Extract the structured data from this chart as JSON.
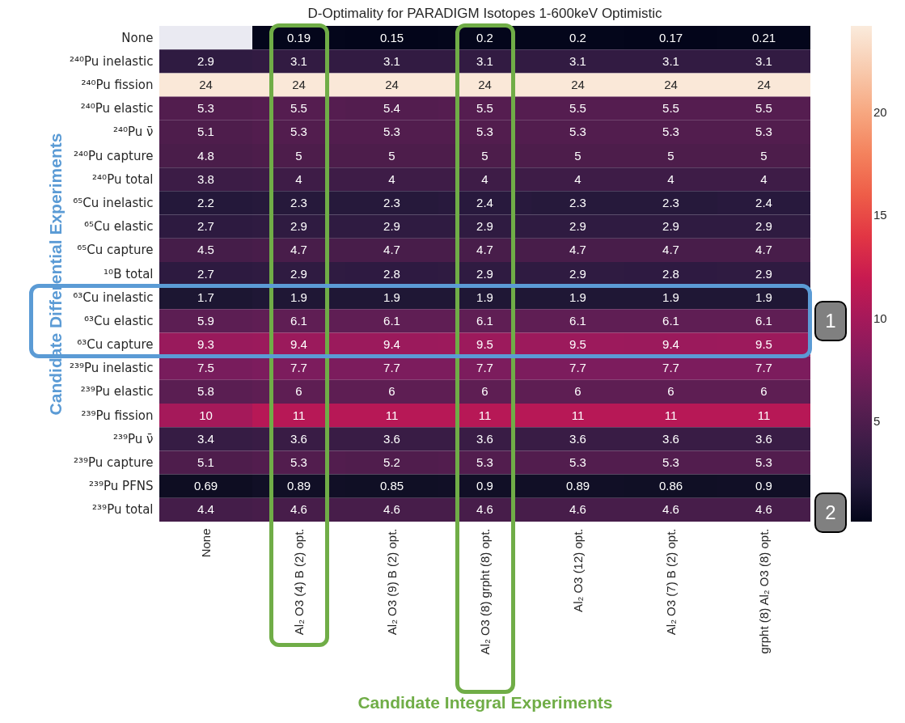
{
  "chart_data": {
    "type": "heatmap",
    "title": "D-Optimality for PARADIGM Isotopes 1-600keV Optimistic",
    "xlabel": "Candidate Integral Experiments",
    "ylabel": "Candidate Differential Experiments",
    "categories": [
      "None",
      "Al₂ O3 (4) B (2) opt.",
      "Al₂ O3 (9) B (2) opt.",
      "Al₂ O3 (8) grpht (8) opt.",
      "Al₂ O3 (12) opt.",
      "Al₂ O3 (7) B (2) opt.",
      "grpht (8) Al₂ O3 (8) opt."
    ],
    "y_categories": [
      "None",
      "²⁴⁰Pu inelastic",
      "²⁴⁰Pu fission",
      "²⁴⁰Pu elastic",
      "²⁴⁰Pu ν̄",
      "²⁴⁰Pu capture",
      "²⁴⁰Pu total",
      "⁶⁵Cu inelastic",
      "⁶⁵Cu elastic",
      "⁶⁵Cu capture",
      "¹⁰B total",
      "⁶³Cu inelastic",
      "⁶³Cu elastic",
      "⁶³Cu capture",
      "²³⁹Pu inelastic",
      "²³⁹Pu elastic",
      "²³⁹Pu fission",
      "²³⁹Pu ν̄",
      "²³⁹Pu capture",
      "²³⁹Pu PFNS",
      "²³⁹Pu total"
    ],
    "cells": [
      [
        null,
        0.19,
        0.15,
        0.2,
        0.2,
        0.17,
        0.21
      ],
      [
        2.9,
        3.1,
        3.1,
        3.1,
        3.1,
        3.1,
        3.1
      ],
      [
        24,
        24,
        24,
        24,
        24,
        24,
        24
      ],
      [
        5.3,
        5.5,
        5.4,
        5.5,
        5.5,
        5.5,
        5.5
      ],
      [
        5.1,
        5.3,
        5.3,
        5.3,
        5.3,
        5.3,
        5.3
      ],
      [
        4.8,
        5,
        5,
        5,
        5,
        5,
        5
      ],
      [
        3.8,
        4,
        4,
        4,
        4,
        4,
        4
      ],
      [
        2.2,
        2.3,
        2.3,
        2.4,
        2.3,
        2.3,
        2.4
      ],
      [
        2.7,
        2.9,
        2.9,
        2.9,
        2.9,
        2.9,
        2.9
      ],
      [
        4.5,
        4.7,
        4.7,
        4.7,
        4.7,
        4.7,
        4.7
      ],
      [
        2.7,
        2.9,
        2.8,
        2.9,
        2.9,
        2.8,
        2.9
      ],
      [
        1.7,
        1.9,
        1.9,
        1.9,
        1.9,
        1.9,
        1.9
      ],
      [
        5.9,
        6.1,
        6.1,
        6.1,
        6.1,
        6.1,
        6.1
      ],
      [
        9.3,
        9.4,
        9.4,
        9.5,
        9.5,
        9.4,
        9.5
      ],
      [
        7.5,
        7.7,
        7.7,
        7.7,
        7.7,
        7.7,
        7.7
      ],
      [
        5.8,
        6,
        6,
        6,
        6,
        6,
        6
      ],
      [
        10,
        11,
        11,
        11,
        11,
        11,
        11
      ],
      [
        3.4,
        3.6,
        3.6,
        3.6,
        3.6,
        3.6,
        3.6
      ],
      [
        5.1,
        5.3,
        5.2,
        5.3,
        5.3,
        5.3,
        5.3
      ],
      [
        0.69,
        0.89,
        0.85,
        0.9,
        0.89,
        0.86,
        0.9
      ],
      [
        4.4,
        4.6,
        4.6,
        4.6,
        4.6,
        4.6,
        4.6
      ]
    ],
    "clim": [
      0.15,
      24.2
    ],
    "cticks": [
      5,
      10,
      15,
      20
    ],
    "data_labels": true,
    "annotations": [
      "1",
      "2"
    ]
  }
}
